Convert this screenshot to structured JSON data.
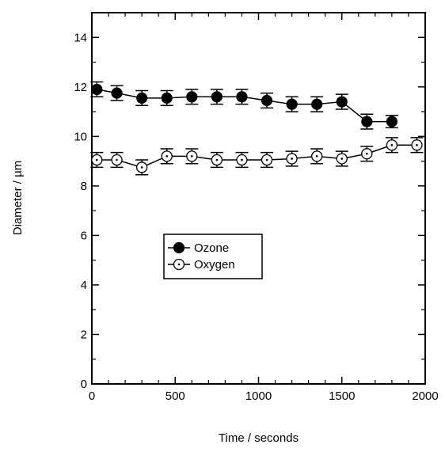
{
  "chart_data": {
    "type": "line",
    "xlabel": "Time / seconds",
    "ylabel": "Diameter / µm",
    "xlim": [
      0,
      2000
    ],
    "ylim": [
      0,
      15
    ],
    "xticks": [
      0,
      500,
      1000,
      1500,
      2000
    ],
    "xtick_labels": [
      "0",
      "500",
      "1000",
      "1500",
      "2000"
    ],
    "yticks": [
      0,
      2,
      4,
      6,
      8,
      10,
      12,
      14
    ],
    "ytick_labels": [
      "0",
      "2",
      "4",
      "6",
      "8",
      "10",
      "12",
      "14"
    ],
    "grid": false,
    "legend_position": "center-left",
    "series": [
      {
        "name": "Ozone",
        "marker": "filled-circle",
        "color": "#000000",
        "x": [
          30,
          150,
          300,
          450,
          600,
          750,
          900,
          1050,
          1200,
          1350,
          1500,
          1650,
          1800
        ],
        "y": [
          11.9,
          11.75,
          11.55,
          11.55,
          11.6,
          11.6,
          11.6,
          11.45,
          11.3,
          11.3,
          11.4,
          10.6,
          10.6
        ],
        "error": [
          0.3,
          0.3,
          0.3,
          0.3,
          0.3,
          0.3,
          0.3,
          0.3,
          0.3,
          0.3,
          0.3,
          0.3,
          0.25
        ]
      },
      {
        "name": "Oxygen",
        "marker": "open-circle-dot",
        "color": "#000000",
        "x": [
          30,
          150,
          300,
          450,
          600,
          750,
          900,
          1050,
          1200,
          1350,
          1500,
          1650,
          1800,
          1950
        ],
        "y": [
          9.05,
          9.05,
          8.75,
          9.2,
          9.2,
          9.05,
          9.05,
          9.05,
          9.1,
          9.2,
          9.1,
          9.3,
          9.65,
          9.65
        ],
        "error": [
          0.3,
          0.3,
          0.3,
          0.3,
          0.3,
          0.3,
          0.3,
          0.3,
          0.3,
          0.3,
          0.3,
          0.3,
          0.3,
          0.3
        ]
      }
    ]
  }
}
